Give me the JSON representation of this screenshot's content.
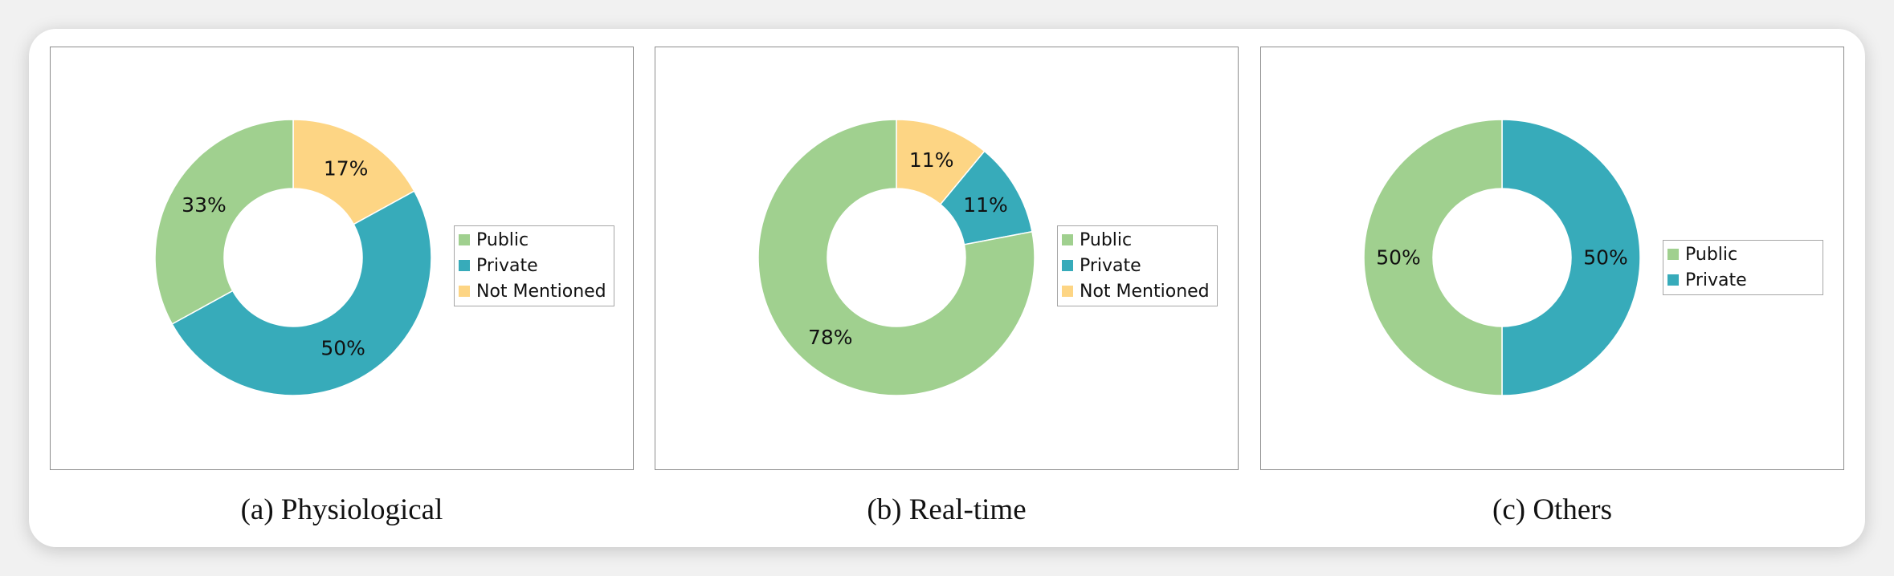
{
  "colors": {
    "public": "#a0d08f",
    "private": "#37abba",
    "not_mentioned": "#fdd584"
  },
  "chart_data": [
    {
      "type": "pie",
      "caption": "(a) Physiological",
      "slices": [
        {
          "name": "Public",
          "value": 33,
          "label": "33%",
          "color_key": "public"
        },
        {
          "name": "Private",
          "value": 50,
          "label": "50%",
          "color_key": "private"
        },
        {
          "name": "Not Mentioned",
          "value": 17,
          "label": "17%",
          "color_key": "not_mentioned"
        }
      ],
      "legend": [
        "Public",
        "Private",
        "Not Mentioned"
      ]
    },
    {
      "type": "pie",
      "caption": "(b) Real-time",
      "slices": [
        {
          "name": "Public",
          "value": 78,
          "label": "78%",
          "color_key": "public"
        },
        {
          "name": "Private",
          "value": 11,
          "label": "11%",
          "color_key": "private"
        },
        {
          "name": "Not Mentioned",
          "value": 11,
          "label": "11%",
          "color_key": "not_mentioned"
        }
      ],
      "legend": [
        "Public",
        "Private",
        "Not Mentioned"
      ]
    },
    {
      "type": "pie",
      "caption": "(c) Others",
      "slices": [
        {
          "name": "Public",
          "value": 50,
          "label": "50%",
          "color_key": "public"
        },
        {
          "name": "Private",
          "value": 50,
          "label": "50%",
          "color_key": "private"
        }
      ],
      "legend": [
        "Public",
        "Private"
      ]
    }
  ]
}
